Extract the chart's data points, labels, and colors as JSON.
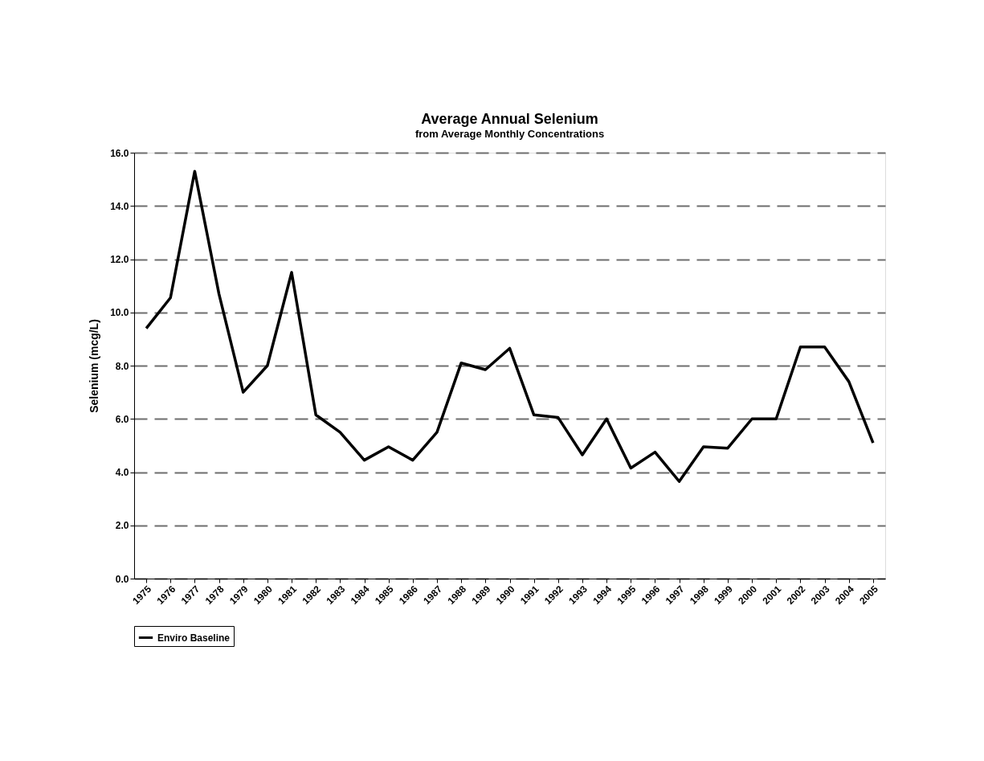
{
  "chart_data": {
    "type": "line",
    "title": "Average Annual Selenium",
    "subtitle": "from Average Monthly Concentrations",
    "ylabel": "Selenium (mcg/L)",
    "categories": [
      "1975",
      "1976",
      "1977",
      "1978",
      "1979",
      "1980",
      "1981",
      "1982",
      "1983",
      "1984",
      "1985",
      "1986",
      "1987",
      "1988",
      "1989",
      "1990",
      "1991",
      "1992",
      "1993",
      "1994",
      "1995",
      "1996",
      "1997",
      "1998",
      "1999",
      "2000",
      "2001",
      "2002",
      "2003",
      "2004",
      "2005"
    ],
    "series": [
      {
        "name": "Enviro Baseline",
        "color": "#000000",
        "values": [
          9.4,
          10.55,
          15.3,
          10.7,
          7.0,
          8.0,
          11.5,
          6.15,
          5.5,
          4.45,
          4.95,
          4.45,
          5.5,
          8.1,
          7.85,
          8.65,
          6.15,
          6.05,
          4.65,
          6.0,
          4.15,
          4.75,
          3.65,
          4.95,
          4.9,
          6.0,
          6.0,
          8.7,
          8.7,
          7.4,
          5.1
        ]
      }
    ],
    "ylim": [
      0,
      16
    ],
    "yticks": [
      {
        "value": 0,
        "label": "0.0"
      },
      {
        "value": 2,
        "label": "2.0"
      },
      {
        "value": 4,
        "label": "4.0"
      },
      {
        "value": 6,
        "label": "6.0"
      },
      {
        "value": 8,
        "label": "8.0"
      },
      {
        "value": 10,
        "label": "10.0"
      },
      {
        "value": 12,
        "label": "12.0"
      },
      {
        "value": 14,
        "label": "14.0"
      },
      {
        "value": 16,
        "label": "16.0"
      }
    ],
    "grid": "y",
    "legend": "bottom",
    "marker": "none",
    "line_style": "solid"
  }
}
